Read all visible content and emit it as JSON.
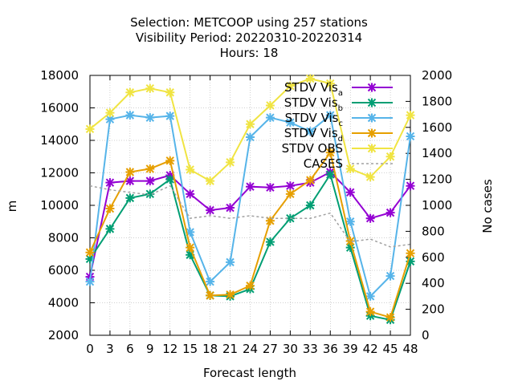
{
  "chart_data": {
    "type": "line",
    "title_lines": [
      "Selection: METCOOP using   257 stations",
      "Visibility   Period: 20220310-20220314",
      "Hours:  18"
    ],
    "xlabel": "Forecast length",
    "ylabel": "m",
    "y2label": "No cases",
    "x": [
      0,
      3,
      6,
      9,
      12,
      15,
      18,
      21,
      24,
      27,
      30,
      33,
      36,
      39,
      42,
      45,
      48
    ],
    "xlim": [
      0,
      48
    ],
    "ylim": [
      2000,
      18000
    ],
    "y2lim": [
      0,
      2000
    ],
    "yticks": [
      2000,
      4000,
      6000,
      8000,
      10000,
      12000,
      14000,
      16000,
      18000
    ],
    "y2ticks": [
      0,
      200,
      400,
      600,
      800,
      1000,
      1200,
      1400,
      1600,
      1800,
      2000
    ],
    "grid": true,
    "legend_position": "top-right",
    "series": [
      {
        "name": "STDV Vis",
        "sub": "a",
        "color": "#9400d3",
        "axis": "y1",
        "values": [
          5600,
          11400,
          11500,
          11500,
          11850,
          10700,
          9700,
          9850,
          11150,
          11100,
          11200,
          11400,
          12050,
          10800,
          9200,
          9550,
          11200
        ]
      },
      {
        "name": "STDV Vis",
        "sub": "b",
        "color": "#009e73",
        "axis": "y1",
        "values": [
          6700,
          8550,
          10450,
          10700,
          11600,
          6950,
          4450,
          4400,
          4850,
          7750,
          9200,
          10000,
          11900,
          7400,
          3200,
          2950,
          6550
        ]
      },
      {
        "name": "STDV Vis",
        "sub": "c",
        "color": "#56b4e9",
        "axis": "y1",
        "values": [
          5300,
          15300,
          15550,
          15400,
          15500,
          8350,
          5300,
          6500,
          14200,
          15400,
          15100,
          14550,
          15550,
          9000,
          4400,
          5650,
          14250
        ]
      },
      {
        "name": "STDV Vis",
        "sub": "d",
        "color": "#e69f00",
        "axis": "y1",
        "values": [
          7100,
          9800,
          12050,
          12250,
          12750,
          7400,
          4450,
          4500,
          5050,
          9050,
          10700,
          11550,
          13250,
          7800,
          3450,
          3100,
          7050
        ]
      },
      {
        "name": "STDV OBS",
        "sub": "",
        "color": "#f0e442",
        "axis": "y1",
        "values": [
          14700,
          15700,
          16950,
          17200,
          16950,
          12200,
          11500,
          12650,
          15000,
          16150,
          17350,
          17800,
          17500,
          12250,
          11750,
          13000,
          15550
        ]
      },
      {
        "name": "CASES",
        "sub": "",
        "color": "#a0a0a0",
        "axis": "y2",
        "dashed": true,
        "values": [
          1150,
          1120,
          1100,
          1080,
          1150,
          900,
          920,
          900,
          920,
          900,
          900,
          900,
          940,
          720,
          740,
          680,
          700
        ]
      }
    ]
  }
}
